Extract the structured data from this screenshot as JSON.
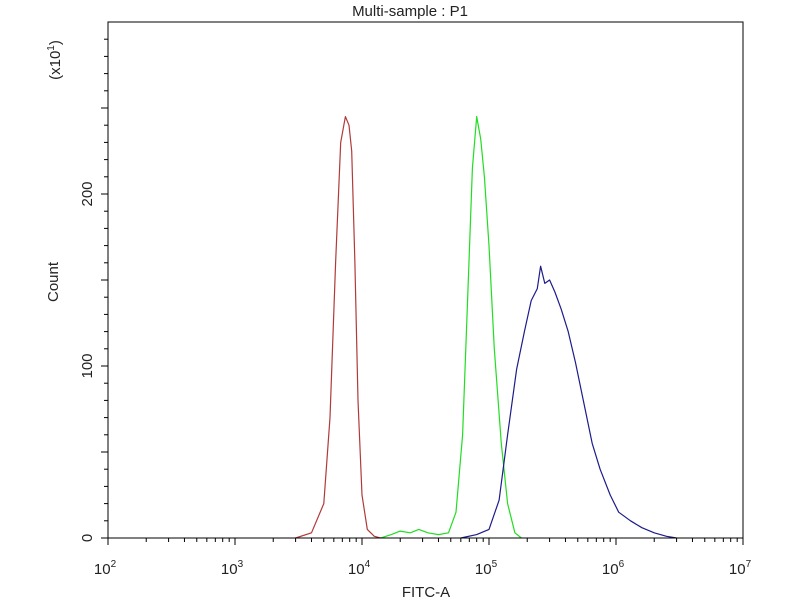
{
  "chart_data": {
    "type": "line",
    "title": "Multi-sample : P1",
    "xlabel": "FITC-A",
    "ylabel": "Count",
    "y_multiplier_label": "(x10",
    "y_multiplier_exp": "1",
    "y_multiplier_close": ")",
    "x_scale": "log",
    "xlim": [
      100,
      10000000
    ],
    "ylim": [
      0,
      300
    ],
    "grid": false,
    "legend": "none",
    "x_ticks": [
      {
        "value": 100,
        "base": "10",
        "exp": "2"
      },
      {
        "value": 1000,
        "base": "10",
        "exp": "3"
      },
      {
        "value": 10000,
        "base": "10",
        "exp": "4"
      },
      {
        "value": 100000,
        "base": "10",
        "exp": "5"
      },
      {
        "value": 1000000,
        "base": "10",
        "exp": "6"
      },
      {
        "value": 10000000,
        "base": "10",
        "exp": "7"
      }
    ],
    "y_ticks": [
      {
        "value": 0,
        "label": "0"
      },
      {
        "value": 100,
        "label": "100"
      },
      {
        "value": 200,
        "label": "200"
      }
    ],
    "series": [
      {
        "color": "#b03a3a",
        "x": [
          3000,
          4000,
          5000,
          5600,
          6200,
          6800,
          7400,
          7900,
          8300,
          8800,
          9300,
          10000,
          11000,
          12500,
          14000
        ],
        "y": [
          0,
          3,
          20,
          70,
          160,
          230,
          245,
          240,
          225,
          160,
          80,
          25,
          5,
          1,
          0
        ]
      },
      {
        "color": "#22dd22",
        "x": [
          14000,
          17000,
          20000,
          24000,
          28000,
          33000,
          40000,
          48000,
          55000,
          62000,
          68000,
          74000,
          80000,
          86000,
          92000,
          100000,
          110000,
          125000,
          140000,
          160000,
          180000
        ],
        "y": [
          0,
          2,
          4,
          3,
          5,
          3,
          2,
          3,
          15,
          60,
          140,
          215,
          245,
          232,
          210,
          170,
          110,
          55,
          20,
          3,
          0
        ]
      },
      {
        "color": "#1c1c8a",
        "x": [
          60000,
          80000,
          100000,
          120000,
          140000,
          165000,
          190000,
          215000,
          240000,
          255000,
          275000,
          300000,
          330000,
          370000,
          420000,
          480000,
          560000,
          650000,
          750000,
          900000,
          1050000,
          1300000,
          1600000,
          2000000,
          2500000,
          3000000
        ],
        "y": [
          0,
          2,
          5,
          22,
          60,
          98,
          120,
          138,
          145,
          158,
          148,
          150,
          143,
          133,
          120,
          102,
          78,
          55,
          40,
          25,
          15,
          10,
          6,
          3,
          1,
          0
        ]
      }
    ]
  }
}
